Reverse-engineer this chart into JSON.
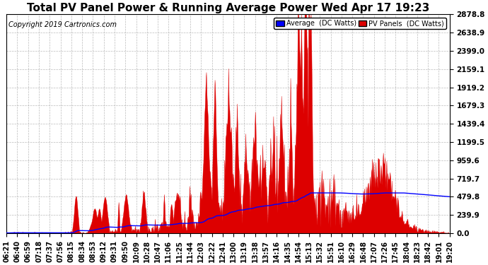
{
  "title": "Total PV Panel Power & Running Average Power Wed Apr 17 19:23",
  "copyright": "Copyright 2019 Cartronics.com",
  "legend_avg": "Average  (DC Watts)",
  "legend_pv": "PV Panels  (DC Watts)",
  "yticks": [
    0.0,
    239.9,
    479.8,
    719.7,
    959.6,
    1199.5,
    1439.4,
    1679.3,
    1919.2,
    2159.1,
    2399.0,
    2638.9,
    2878.8
  ],
  "ylim": [
    0.0,
    2878.8
  ],
  "bg_color": "#ffffff",
  "grid_color": "#aaaaaa",
  "pv_color": "#dd0000",
  "avg_color": "#0000ff",
  "title_fontsize": 11,
  "copyright_fontsize": 7,
  "tick_fontsize": 7.5,
  "n_points": 780,
  "xtick_labels": [
    "06:21",
    "06:40",
    "06:59",
    "07:18",
    "07:37",
    "07:56",
    "08:15",
    "08:34",
    "08:53",
    "09:12",
    "09:31",
    "09:50",
    "10:09",
    "10:28",
    "10:47",
    "11:06",
    "11:25",
    "11:44",
    "12:03",
    "12:22",
    "12:41",
    "13:00",
    "13:19",
    "13:38",
    "13:57",
    "14:16",
    "14:35",
    "14:54",
    "15:13",
    "15:32",
    "15:51",
    "16:10",
    "16:29",
    "16:48",
    "17:07",
    "17:26",
    "17:45",
    "18:04",
    "18:23",
    "18:42",
    "19:01",
    "19:20"
  ]
}
